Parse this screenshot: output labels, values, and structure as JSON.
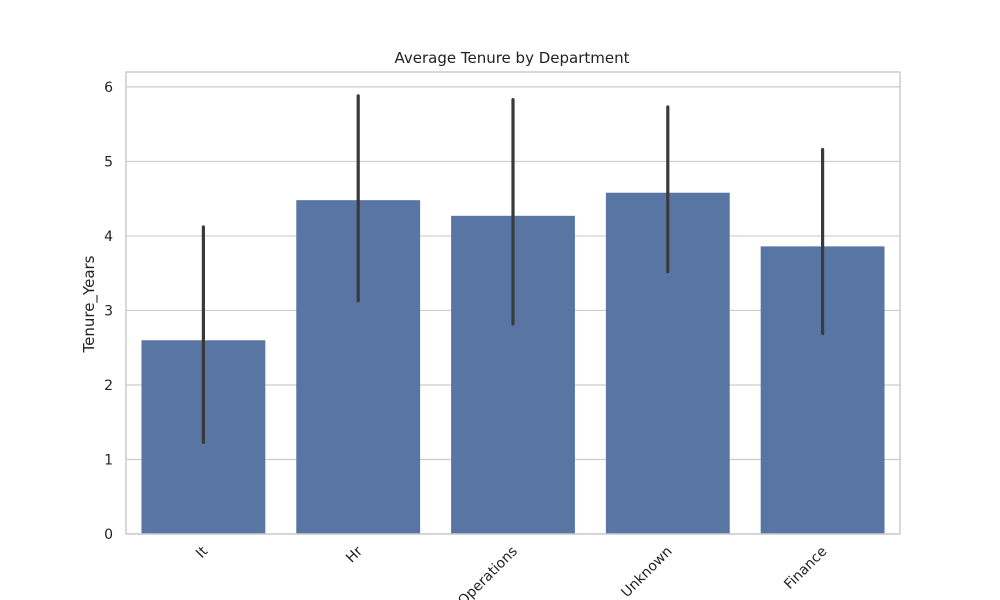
{
  "chart_data": {
    "type": "bar",
    "title": "Average Tenure by Department",
    "xlabel": "",
    "ylabel": "Tenure_Years",
    "categories": [
      "It",
      "Hr",
      "Operations",
      "Unknown",
      "Finance"
    ],
    "values": [
      2.6,
      4.48,
      4.27,
      4.58,
      3.86
    ],
    "error_low": [
      1.23,
      3.13,
      2.82,
      3.52,
      2.69
    ],
    "error_high": [
      4.12,
      5.88,
      5.83,
      5.73,
      5.16
    ],
    "ylim": [
      0,
      6.2
    ],
    "yticks": [
      0,
      1,
      2,
      3,
      4,
      5,
      6
    ],
    "grid": true,
    "x_tick_rotation_deg": 45,
    "colors": {
      "bar": "#5875a4",
      "error_bar": "#3a3a3a",
      "grid": "#cccccc",
      "frame": "#cccccc"
    }
  }
}
